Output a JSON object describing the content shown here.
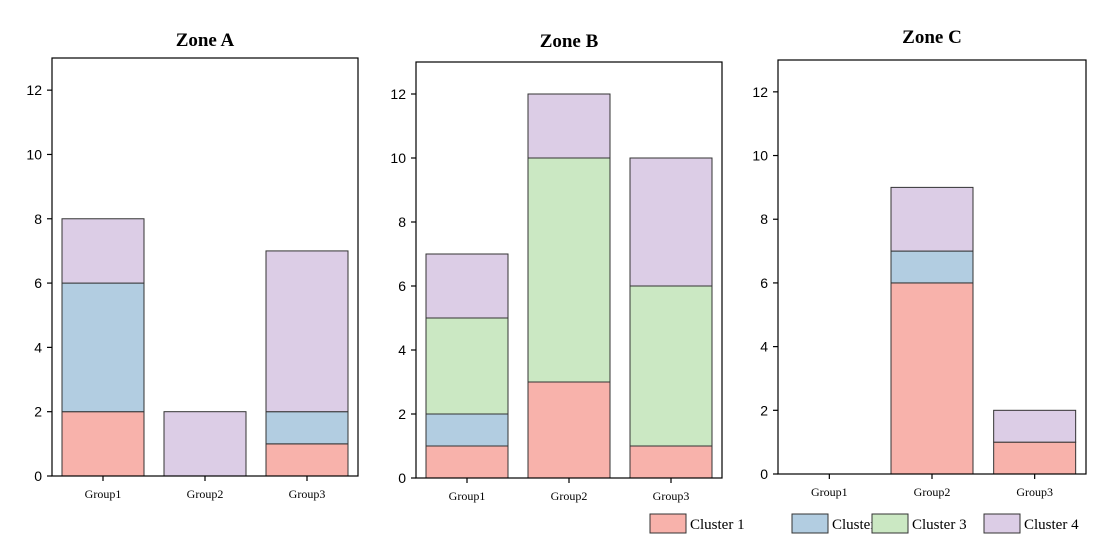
{
  "chart_data": [
    {
      "type": "bar",
      "stacked": true,
      "title": "Zone A",
      "categories": [
        "Group1",
        "Group2",
        "Group3"
      ],
      "ylim": [
        0,
        13
      ],
      "yticks": [
        0,
        2,
        4,
        6,
        8,
        10,
        12
      ],
      "series": [
        {
          "name": "Cluster 1",
          "values": [
            2,
            0,
            1
          ]
        },
        {
          "name": "Cluster 2",
          "values": [
            4,
            0,
            1
          ]
        },
        {
          "name": "Cluster 3",
          "values": [
            0,
            0,
            0
          ]
        },
        {
          "name": "Cluster 4",
          "values": [
            2,
            2,
            5
          ]
        }
      ]
    },
    {
      "type": "bar",
      "stacked": true,
      "title": "Zone B",
      "categories": [
        "Group1",
        "Group2",
        "Group3"
      ],
      "ylim": [
        0,
        13
      ],
      "yticks": [
        0,
        2,
        4,
        6,
        8,
        10,
        12
      ],
      "series": [
        {
          "name": "Cluster 1",
          "values": [
            1,
            3,
            1
          ]
        },
        {
          "name": "Cluster 2",
          "values": [
            1,
            0,
            0
          ]
        },
        {
          "name": "Cluster 3",
          "values": [
            3,
            7,
            5
          ]
        },
        {
          "name": "Cluster 4",
          "values": [
            2,
            2,
            4
          ]
        }
      ]
    },
    {
      "type": "bar",
      "stacked": true,
      "title": "Zone C",
      "categories": [
        "Group1",
        "Group2",
        "Group3"
      ],
      "ylim": [
        0,
        13
      ],
      "yticks": [
        0,
        2,
        4,
        6,
        8,
        10,
        12
      ],
      "series": [
        {
          "name": "Cluster 1",
          "values": [
            0,
            6,
            1
          ]
        },
        {
          "name": "Cluster 2",
          "values": [
            0,
            1,
            0
          ]
        },
        {
          "name": "Cluster 3",
          "values": [
            0,
            0,
            0
          ]
        },
        {
          "name": "Cluster 4",
          "values": [
            0,
            2,
            1
          ]
        }
      ]
    }
  ],
  "legend": {
    "placement": "bottom-right",
    "items": [
      {
        "label": "Cluster 1",
        "color": "#f8b2ab"
      },
      {
        "label": "Cluster 2",
        "color": "#b2cde1"
      },
      {
        "label": "Cluster 3",
        "color": "#cbe8c3"
      },
      {
        "label": "Cluster 4",
        "color": "#dccde6"
      }
    ]
  },
  "colors": {
    "Cluster 1": "#f8b2ab",
    "Cluster 2": "#b2cde1",
    "Cluster 3": "#cbe8c3",
    "Cluster 4": "#dccde6",
    "axis": "#000000",
    "bar_edge": "#333333"
  },
  "grid": false
}
